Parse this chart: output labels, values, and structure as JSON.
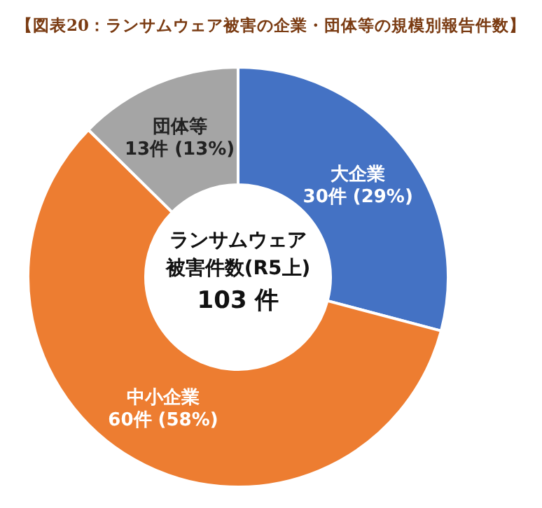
{
  "chart_data": {
    "type": "donut",
    "title": "【図表20：ランサムウェア被害の企業・団体等の規模別報告件数】",
    "categories": [
      "大企業",
      "中小企業",
      "団体等"
    ],
    "values": [
      30,
      60,
      13
    ],
    "colors": [
      "#4472c4",
      "#ed7d31",
      "#a5a5a5"
    ],
    "value_labels": [
      "30件 (29%)",
      "60件 (58%)",
      "13件 (13%)"
    ],
    "annotations": [
      "ランサムウェア",
      "被害件数(R5上)",
      "103 件"
    ]
  }
}
